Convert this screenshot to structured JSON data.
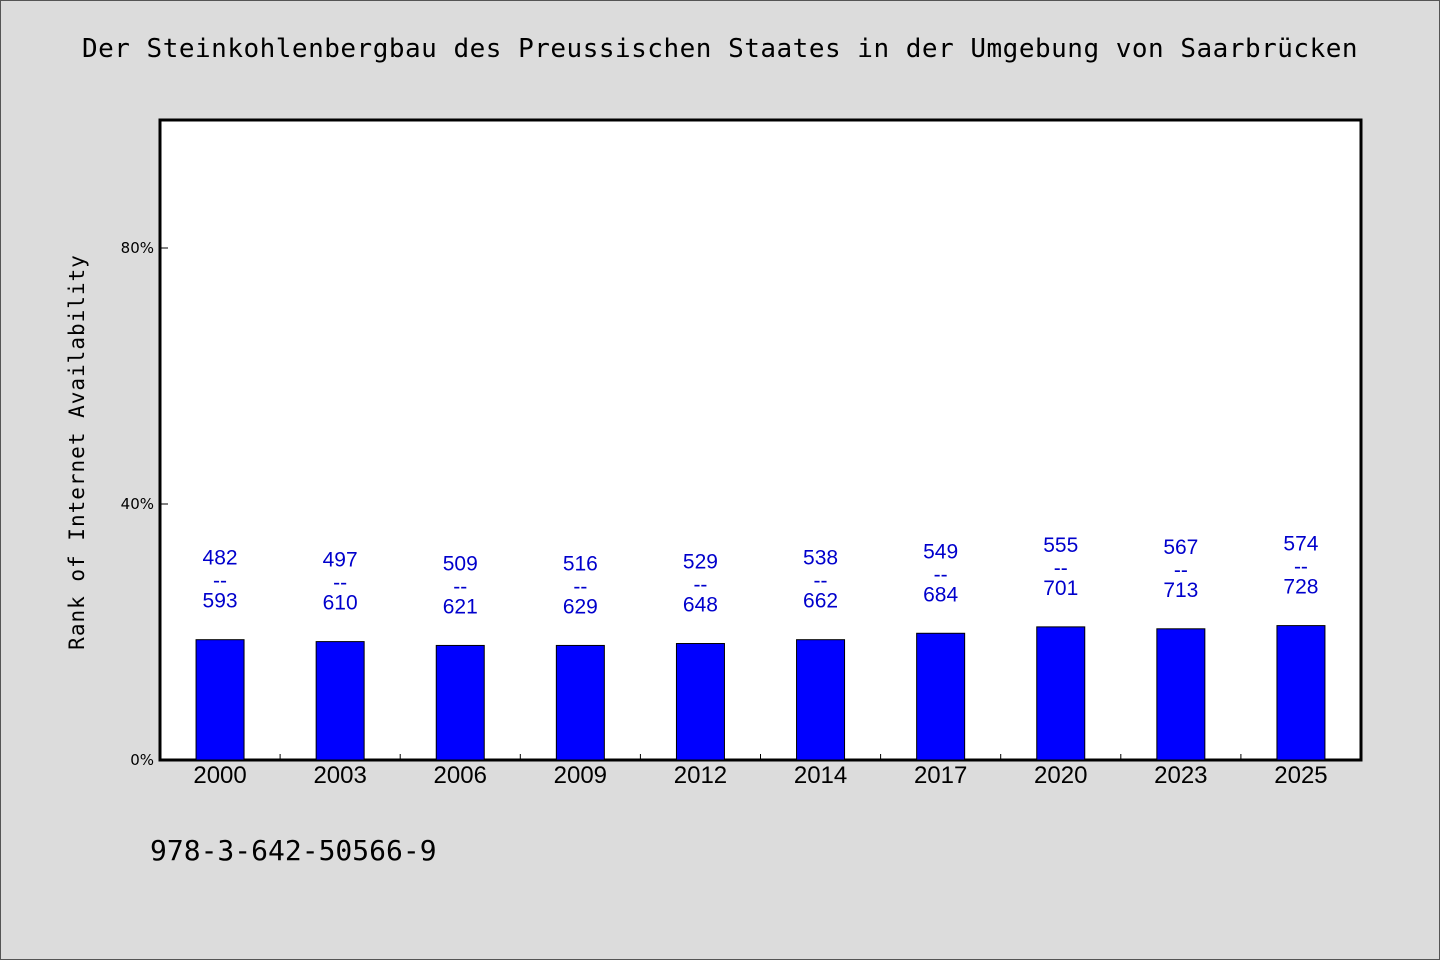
{
  "title": "Der Steinkohlenbergbau des Preussischen Staates in der Umgebung von Saarbrücken",
  "footer_code": "978-3-642-50566-9",
  "colors": {
    "bar": "#0000ff",
    "label": "#0000cc",
    "background": "#dcdcdc",
    "plot_bg": "#ffffff"
  },
  "chart_data": {
    "type": "bar",
    "title": "Der Steinkohlenbergbau des Preussischen Staates in der Umgebung von Saarbrücken",
    "ylabel": "Rank of Internet Availability",
    "xlabel": "",
    "ylim": [
      0,
      100
    ],
    "yticks": [
      0,
      40,
      80
    ],
    "ytick_labels": [
      "0%",
      "40%",
      "80%"
    ],
    "grid": false,
    "categories": [
      "2000",
      "2003",
      "2006",
      "2009",
      "2012",
      "2014",
      "2017",
      "2020",
      "2023",
      "2025"
    ],
    "values": [
      18.8,
      18.5,
      17.9,
      17.9,
      18.2,
      18.8,
      19.8,
      20.8,
      20.5,
      21.0
    ],
    "label_top": [
      "482",
      "497",
      "509",
      "516",
      "529",
      "538",
      "549",
      "555",
      "567",
      "574"
    ],
    "label_bottom": [
      "593",
      "610",
      "621",
      "629",
      "648",
      "662",
      "684",
      "701",
      "713",
      "728"
    ],
    "label_separator": "--"
  }
}
